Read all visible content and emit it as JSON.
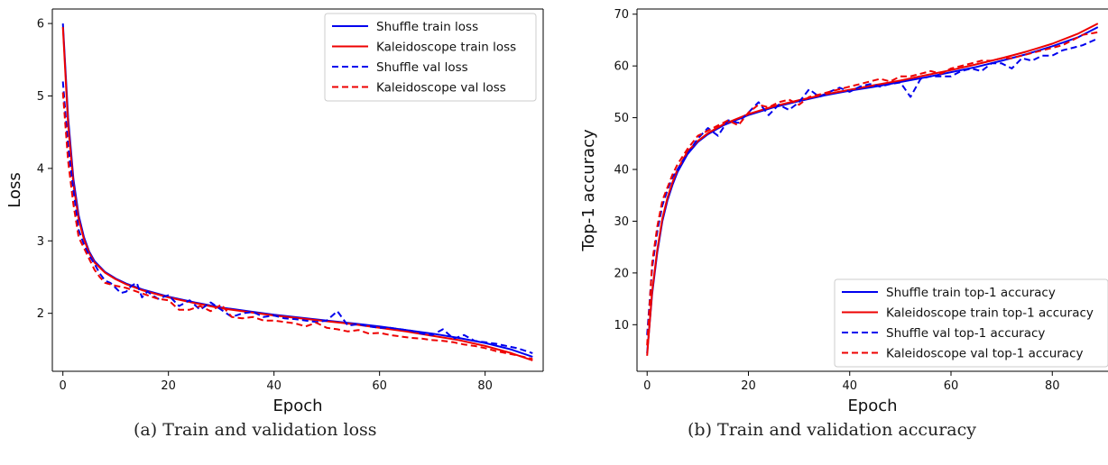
{
  "figure": {
    "captions": [
      "(a) Train and validation loss",
      "(b) Train and validation accuracy"
    ]
  },
  "chart_data": [
    {
      "type": "line",
      "xlabel": "Epoch",
      "ylabel": "Loss",
      "xlim": [
        -2,
        91
      ],
      "ylim": [
        1.2,
        6.2
      ],
      "xticks": [
        0,
        20,
        40,
        60,
        80
      ],
      "yticks": [
        2,
        3,
        4,
        5,
        6
      ],
      "legend_position": "top-right",
      "grid": false,
      "series": [
        {
          "name": "Shuffle train loss",
          "color": "#0000ee",
          "dash": "solid",
          "x": [
            0,
            1,
            2,
            3,
            4,
            5,
            6,
            8,
            10,
            12,
            15,
            20,
            25,
            30,
            35,
            40,
            45,
            50,
            55,
            60,
            65,
            70,
            75,
            80,
            85,
            89
          ],
          "y": [
            6.0,
            4.7,
            3.85,
            3.35,
            3.05,
            2.85,
            2.72,
            2.57,
            2.48,
            2.41,
            2.33,
            2.23,
            2.15,
            2.08,
            2.03,
            1.98,
            1.94,
            1.9,
            1.86,
            1.82,
            1.77,
            1.72,
            1.66,
            1.59,
            1.5,
            1.4
          ]
        },
        {
          "name": "Kaleidoscope train loss",
          "color": "#ee0000",
          "dash": "solid",
          "x": [
            0,
            1,
            2,
            3,
            4,
            5,
            6,
            8,
            10,
            12,
            15,
            20,
            25,
            30,
            35,
            40,
            45,
            50,
            55,
            60,
            65,
            70,
            75,
            80,
            85,
            89
          ],
          "y": [
            5.95,
            4.6,
            3.78,
            3.3,
            3.02,
            2.83,
            2.7,
            2.56,
            2.47,
            2.4,
            2.32,
            2.22,
            2.14,
            2.07,
            2.02,
            1.97,
            1.93,
            1.89,
            1.85,
            1.8,
            1.75,
            1.69,
            1.63,
            1.55,
            1.45,
            1.35
          ]
        },
        {
          "name": "Shuffle val loss",
          "color": "#0000ee",
          "dash": "dashed",
          "x": [
            0,
            1,
            2,
            3,
            4,
            5,
            6,
            7,
            8,
            9,
            10,
            11,
            12,
            13,
            14,
            15,
            16,
            18,
            20,
            22,
            24,
            26,
            28,
            30,
            32,
            34,
            36,
            38,
            40,
            42,
            44,
            46,
            48,
            50,
            52,
            54,
            56,
            58,
            60,
            62,
            64,
            66,
            68,
            70,
            72,
            74,
            76,
            78,
            80,
            82,
            84,
            86,
            89
          ],
          "y": [
            5.2,
            4.3,
            3.7,
            3.15,
            2.95,
            2.8,
            2.68,
            2.55,
            2.45,
            2.42,
            2.35,
            2.28,
            2.3,
            2.38,
            2.42,
            2.22,
            2.3,
            2.2,
            2.25,
            2.1,
            2.18,
            2.05,
            2.15,
            2.05,
            1.95,
            2.0,
            2.02,
            1.95,
            1.97,
            1.93,
            1.92,
            1.9,
            1.88,
            1.9,
            2.03,
            1.83,
            1.85,
            1.82,
            1.8,
            1.8,
            1.78,
            1.76,
            1.72,
            1.7,
            1.78,
            1.65,
            1.7,
            1.62,
            1.6,
            1.58,
            1.55,
            1.52,
            1.45
          ]
        },
        {
          "name": "Kaleidoscope val loss",
          "color": "#ee0000",
          "dash": "dashed",
          "x": [
            0,
            1,
            2,
            3,
            4,
            5,
            6,
            7,
            8,
            9,
            10,
            12,
            14,
            16,
            18,
            20,
            22,
            24,
            26,
            28,
            30,
            32,
            34,
            36,
            38,
            40,
            42,
            44,
            46,
            48,
            50,
            52,
            54,
            56,
            58,
            60,
            62,
            64,
            66,
            68,
            70,
            72,
            74,
            76,
            78,
            80,
            82,
            84,
            86,
            89
          ],
          "y": [
            5.05,
            4.1,
            3.5,
            3.05,
            2.9,
            2.75,
            2.6,
            2.5,
            2.42,
            2.4,
            2.38,
            2.35,
            2.3,
            2.25,
            2.2,
            2.18,
            2.05,
            2.05,
            2.1,
            2.03,
            2.12,
            1.95,
            1.93,
            1.95,
            1.9,
            1.9,
            1.88,
            1.86,
            1.82,
            1.87,
            1.8,
            1.78,
            1.75,
            1.77,
            1.72,
            1.73,
            1.7,
            1.68,
            1.66,
            1.65,
            1.63,
            1.62,
            1.6,
            1.57,
            1.55,
            1.52,
            1.48,
            1.45,
            1.42,
            1.37
          ]
        }
      ]
    },
    {
      "type": "line",
      "xlabel": "Epoch",
      "ylabel": "Top-1 accuracy",
      "xlim": [
        -2,
        91
      ],
      "ylim": [
        1,
        71
      ],
      "xticks": [
        0,
        20,
        40,
        60,
        80
      ],
      "yticks": [
        10,
        20,
        30,
        40,
        50,
        60,
        70
      ],
      "legend_position": "bottom-right",
      "grid": false,
      "series": [
        {
          "name": "Shuffle train top-1 accuracy",
          "color": "#0000ee",
          "dash": "solid",
          "x": [
            0,
            1,
            2,
            3,
            4,
            5,
            6,
            8,
            10,
            12,
            15,
            20,
            25,
            30,
            35,
            40,
            45,
            50,
            55,
            60,
            65,
            70,
            75,
            80,
            85,
            89
          ],
          "y": [
            4.5,
            16.0,
            24.0,
            30.0,
            34.0,
            37.0,
            39.5,
            43.0,
            45.3,
            46.8,
            48.5,
            50.5,
            52.0,
            53.2,
            54.3,
            55.2,
            56.0,
            56.9,
            57.8,
            58.8,
            59.8,
            61.0,
            62.3,
            63.8,
            65.5,
            67.5
          ]
        },
        {
          "name": "Kaleidoscope train top-1 accuracy",
          "color": "#ee0000",
          "dash": "solid",
          "x": [
            0,
            1,
            2,
            3,
            4,
            5,
            6,
            8,
            10,
            12,
            15,
            20,
            25,
            30,
            35,
            40,
            45,
            50,
            55,
            60,
            65,
            70,
            75,
            80,
            85,
            89
          ],
          "y": [
            4.0,
            16.5,
            24.5,
            30.5,
            34.5,
            37.5,
            40.0,
            43.5,
            45.5,
            47.0,
            48.7,
            50.7,
            52.2,
            53.4,
            54.5,
            55.4,
            56.3,
            57.2,
            58.2,
            59.2,
            60.3,
            61.5,
            62.8,
            64.3,
            66.2,
            68.2
          ]
        },
        {
          "name": "Shuffle val top-1 accuracy",
          "color": "#0000ee",
          "dash": "dashed",
          "x": [
            0,
            1,
            2,
            3,
            4,
            5,
            6,
            8,
            10,
            12,
            14,
            16,
            18,
            20,
            22,
            24,
            26,
            28,
            30,
            32,
            34,
            36,
            38,
            40,
            42,
            44,
            46,
            48,
            50,
            52,
            54,
            56,
            58,
            60,
            62,
            64,
            66,
            68,
            70,
            72,
            74,
            76,
            78,
            80,
            82,
            84,
            86,
            89
          ],
          "y": [
            8.0,
            21.0,
            28.0,
            33.0,
            36.0,
            38.5,
            40.0,
            43.0,
            46.0,
            48.0,
            46.5,
            49.5,
            49.0,
            51.0,
            53.0,
            50.5,
            52.5,
            51.5,
            53.0,
            55.5,
            54.0,
            55.0,
            55.8,
            55.0,
            56.0,
            56.5,
            56.0,
            56.5,
            56.8,
            54.0,
            57.5,
            58.0,
            58.0,
            58.0,
            59.0,
            59.5,
            59.0,
            60.5,
            60.5,
            59.5,
            61.5,
            61.0,
            62.0,
            62.0,
            63.0,
            63.5,
            64.0,
            65.3
          ]
        },
        {
          "name": "Kaleidoscope val top-1 accuracy",
          "color": "#ee0000",
          "dash": "dashed",
          "x": [
            0,
            1,
            2,
            3,
            4,
            5,
            6,
            8,
            10,
            12,
            14,
            16,
            18,
            20,
            22,
            24,
            26,
            28,
            30,
            32,
            34,
            36,
            38,
            40,
            42,
            44,
            46,
            48,
            50,
            52,
            54,
            56,
            58,
            60,
            62,
            64,
            66,
            68,
            70,
            72,
            74,
            76,
            78,
            80,
            82,
            84,
            86,
            89
          ],
          "y": [
            6.0,
            22.0,
            29.0,
            34.0,
            36.5,
            39.0,
            41.0,
            44.0,
            46.5,
            47.5,
            48.5,
            49.5,
            48.5,
            51.0,
            52.5,
            52.0,
            53.0,
            53.5,
            52.5,
            54.0,
            54.5,
            55.0,
            55.5,
            56.0,
            56.5,
            57.0,
            57.5,
            57.0,
            58.0,
            58.0,
            58.5,
            59.0,
            58.5,
            59.5,
            60.0,
            60.5,
            61.0,
            61.0,
            61.5,
            61.5,
            62.0,
            62.5,
            63.0,
            63.5,
            64.0,
            65.0,
            66.0,
            66.5
          ]
        }
      ]
    }
  ]
}
